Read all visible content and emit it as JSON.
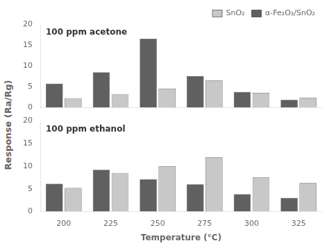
{
  "chart_data": [
    {
      "type": "bar",
      "categories": [
        200,
        225,
        250,
        275,
        300,
        325
      ],
      "series": [
        {
          "name": "α-Fe₂O₃/SnO₂",
          "color": "#606060",
          "values": [
            5.7,
            8.4,
            16.5,
            7.5,
            3.7,
            1.8
          ]
        },
        {
          "name": "SnO₂",
          "color": "#c8c8c8",
          "values": [
            2.2,
            3.2,
            4.5,
            6.5,
            3.5,
            2.3
          ]
        }
      ],
      "ylabel": "Response (Ra/Rg)",
      "annotations": [
        "100 ppm acetone"
      ],
      "ylim": [
        0,
        20
      ],
      "yticks": [
        0,
        5,
        10,
        15,
        20
      ],
      "grid": false,
      "legend": "upper right",
      "tick_labels": "y"
    },
    {
      "type": "bar",
      "categories": [
        200,
        225,
        250,
        275,
        300,
        325
      ],
      "series": [
        {
          "name": "α-Fe₂O₃/SnO₂",
          "color": "#606060",
          "values": [
            6.1,
            9.2,
            7.1,
            6.0,
            3.8,
            3.0
          ]
        },
        {
          "name": "SnO₂",
          "color": "#c8c8c8",
          "values": [
            5.2,
            8.5,
            10.0,
            12.0,
            7.5,
            6.3
          ]
        }
      ],
      "xlabel": "Temperature (°C)",
      "annotations": [
        "100 ppm ethanol"
      ],
      "ylim": [
        0,
        20
      ],
      "yticks": [
        0,
        5,
        10,
        15,
        20
      ],
      "grid": false
    }
  ]
}
